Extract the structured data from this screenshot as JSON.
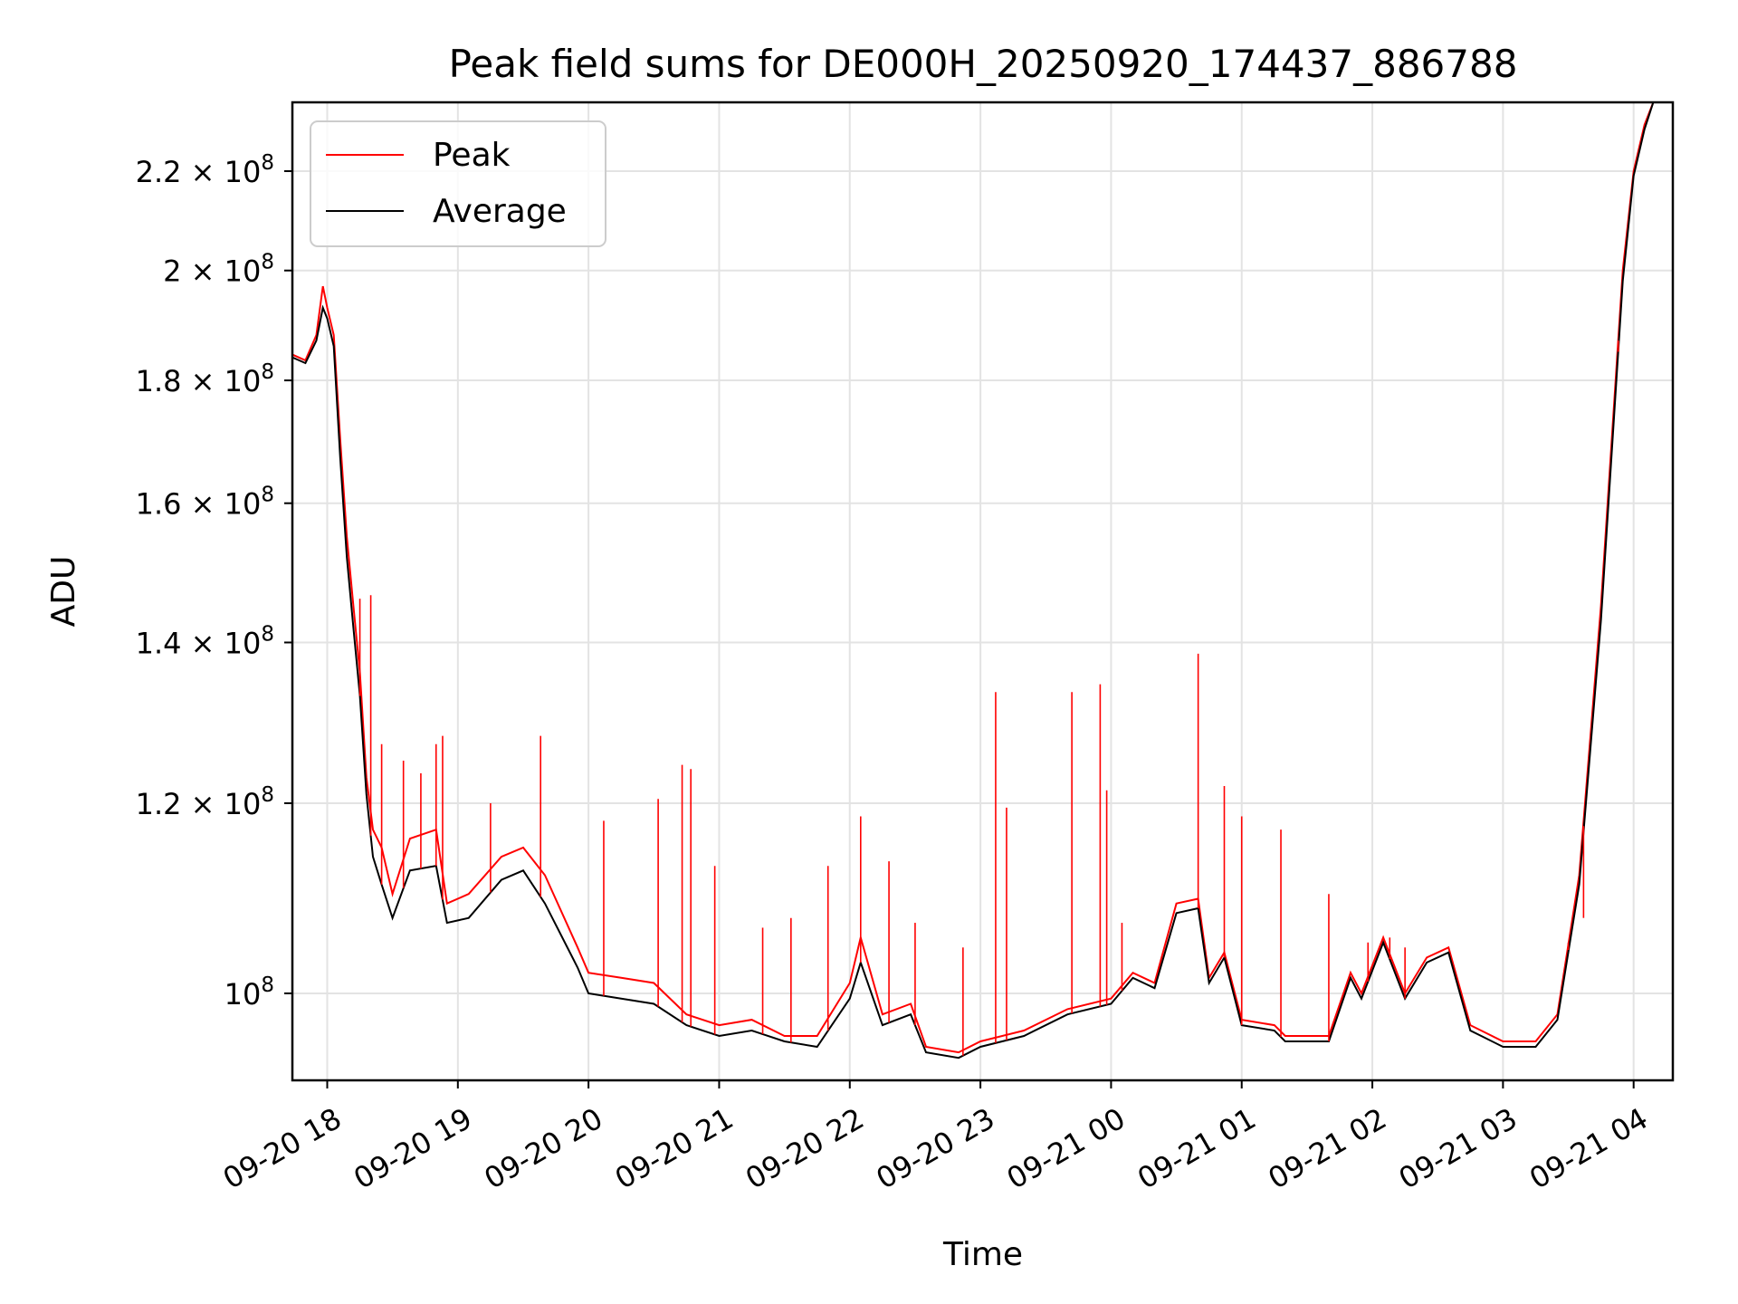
{
  "chart_data": {
    "type": "line",
    "title": "Peak field sums for DE000H_20250920_174437_886788",
    "xlabel": "Time",
    "ylabel": "ADU",
    "y_scale": "log",
    "grid": true,
    "legend_position": "upper-left",
    "x_range": [
      "2025-09-20 17:44",
      "2025-09-21 04:18"
    ],
    "ylim": [
      92000000,
      235000000
    ],
    "x_ticks": [
      {
        "t": "2025-09-20 18:00",
        "label": "09-20 18"
      },
      {
        "t": "2025-09-20 19:00",
        "label": "09-20 19"
      },
      {
        "t": "2025-09-20 20:00",
        "label": "09-20 20"
      },
      {
        "t": "2025-09-20 21:00",
        "label": "09-20 21"
      },
      {
        "t": "2025-09-20 22:00",
        "label": "09-20 22"
      },
      {
        "t": "2025-09-20 23:00",
        "label": "09-20 23"
      },
      {
        "t": "2025-09-21 00:00",
        "label": "09-21 00"
      },
      {
        "t": "2025-09-21 01:00",
        "label": "09-21 01"
      },
      {
        "t": "2025-09-21 02:00",
        "label": "09-21 02"
      },
      {
        "t": "2025-09-21 03:00",
        "label": "09-21 03"
      },
      {
        "t": "2025-09-21 04:00",
        "label": "09-21 04"
      }
    ],
    "y_ticks": [
      {
        "value": 100000000,
        "mant": "",
        "exp": "8",
        "base": "10"
      },
      {
        "value": 120000000,
        "mant": "1.2",
        "exp": "8",
        "base": "10"
      },
      {
        "value": 140000000,
        "mant": "1.4",
        "exp": "8",
        "base": "10"
      },
      {
        "value": 160000000,
        "mant": "1.6",
        "exp": "8",
        "base": "10"
      },
      {
        "value": 180000000,
        "mant": "1.8",
        "exp": "8",
        "base": "10"
      },
      {
        "value": 200000000,
        "mant": "2",
        "exp": "8",
        "base": "10"
      },
      {
        "value": 220000000,
        "mant": "2.2",
        "exp": "8",
        "base": "10"
      }
    ],
    "series": [
      {
        "name": "Peak",
        "color": "#ff0000",
        "points": [
          [
            "2025-09-20 17:44",
            184500000
          ],
          [
            "2025-09-20 17:50",
            183500000
          ],
          [
            "2025-09-20 17:55",
            188000000
          ],
          [
            "2025-09-20 17:58",
            197000000
          ],
          [
            "2025-09-20 18:00",
            193000000
          ],
          [
            "2025-09-20 18:03",
            188000000
          ],
          [
            "2025-09-20 18:06",
            170000000
          ],
          [
            "2025-09-20 18:09",
            155000000
          ],
          [
            "2025-09-20 18:12",
            145000000
          ],
          [
            "2025-09-20 18:15",
            136000000
          ],
          [
            "2025-09-20 18:18",
            123000000
          ],
          [
            "2025-09-20 18:21",
            117000000
          ],
          [
            "2025-09-20 18:25",
            115000000
          ],
          [
            "2025-09-20 18:30",
            110000000
          ],
          [
            "2025-09-20 18:38",
            116000000
          ],
          [
            "2025-09-20 18:50",
            117000000
          ],
          [
            "2025-09-20 18:55",
            109000000
          ],
          [
            "2025-09-20 19:05",
            110000000
          ],
          [
            "2025-09-20 19:20",
            114000000
          ],
          [
            "2025-09-20 19:30",
            115000000
          ],
          [
            "2025-09-20 19:40",
            112000000
          ],
          [
            "2025-09-20 19:55",
            104500000
          ],
          [
            "2025-09-20 20:00",
            102000000
          ],
          [
            "2025-09-20 20:15",
            101500000
          ],
          [
            "2025-09-20 20:30",
            101000000
          ],
          [
            "2025-09-20 20:45",
            98000000
          ],
          [
            "2025-09-20 21:00",
            97000000
          ],
          [
            "2025-09-20 21:15",
            97500000
          ],
          [
            "2025-09-20 21:30",
            96000000
          ],
          [
            "2025-09-20 21:45",
            96000000
          ],
          [
            "2025-09-20 22:00",
            101000000
          ],
          [
            "2025-09-20 22:05",
            105500000
          ],
          [
            "2025-09-20 22:15",
            98000000
          ],
          [
            "2025-09-20 22:28",
            99000000
          ],
          [
            "2025-09-20 22:35",
            95000000
          ],
          [
            "2025-09-20 22:50",
            94500000
          ],
          [
            "2025-09-20 23:00",
            95500000
          ],
          [
            "2025-09-20 23:20",
            96500000
          ],
          [
            "2025-09-20 23:40",
            98500000
          ],
          [
            "2025-09-21 00:00",
            99500000
          ],
          [
            "2025-09-21 00:10",
            102000000
          ],
          [
            "2025-09-21 00:20",
            101000000
          ],
          [
            "2025-09-21 00:30",
            109000000
          ],
          [
            "2025-09-21 00:40",
            109500000
          ],
          [
            "2025-09-21 00:45",
            101500000
          ],
          [
            "2025-09-21 00:52",
            104000000
          ],
          [
            "2025-09-21 01:00",
            97500000
          ],
          [
            "2025-09-21 01:15",
            97000000
          ],
          [
            "2025-09-21 01:20",
            96000000
          ],
          [
            "2025-09-21 01:40",
            96000000
          ],
          [
            "2025-09-21 01:50",
            102000000
          ],
          [
            "2025-09-21 01:55",
            100000000
          ],
          [
            "2025-09-21 02:05",
            105500000
          ],
          [
            "2025-09-21 02:15",
            100000000
          ],
          [
            "2025-09-21 02:25",
            103500000
          ],
          [
            "2025-09-21 02:35",
            104500000
          ],
          [
            "2025-09-21 02:45",
            97000000
          ],
          [
            "2025-09-21 03:00",
            95500000
          ],
          [
            "2025-09-21 03:15",
            95500000
          ],
          [
            "2025-09-21 03:25",
            98000000
          ],
          [
            "2025-09-21 03:35",
            112000000
          ],
          [
            "2025-09-21 03:45",
            145000000
          ],
          [
            "2025-09-21 03:55",
            200000000
          ],
          [
            "2025-09-21 04:00",
            220000000
          ],
          [
            "2025-09-21 04:05",
            230000000
          ],
          [
            "2025-09-21 04:09",
            235000000
          ]
        ]
      },
      {
        "name": "Average",
        "color": "#000000",
        "points": [
          [
            "2025-09-20 17:44",
            184000000
          ],
          [
            "2025-09-20 17:50",
            183000000
          ],
          [
            "2025-09-20 17:55",
            187000000
          ],
          [
            "2025-09-20 17:58",
            193000000
          ],
          [
            "2025-09-20 18:00",
            191000000
          ],
          [
            "2025-09-20 18:03",
            186000000
          ],
          [
            "2025-09-20 18:06",
            167000000
          ],
          [
            "2025-09-20 18:09",
            152000000
          ],
          [
            "2025-09-20 18:12",
            142000000
          ],
          [
            "2025-09-20 18:15",
            133000000
          ],
          [
            "2025-09-20 18:18",
            121000000
          ],
          [
            "2025-09-20 18:21",
            114000000
          ],
          [
            "2025-09-20 18:25",
            111000000
          ],
          [
            "2025-09-20 18:30",
            107500000
          ],
          [
            "2025-09-20 18:38",
            112500000
          ],
          [
            "2025-09-20 18:50",
            113000000
          ],
          [
            "2025-09-20 18:55",
            107000000
          ],
          [
            "2025-09-20 19:05",
            107500000
          ],
          [
            "2025-09-20 19:20",
            111500000
          ],
          [
            "2025-09-20 19:30",
            112500000
          ],
          [
            "2025-09-20 19:40",
            109000000
          ],
          [
            "2025-09-20 19:55",
            102500000
          ],
          [
            "2025-09-20 20:00",
            100000000
          ],
          [
            "2025-09-20 20:15",
            99500000
          ],
          [
            "2025-09-20 20:30",
            99000000
          ],
          [
            "2025-09-20 20:45",
            97000000
          ],
          [
            "2025-09-20 21:00",
            96000000
          ],
          [
            "2025-09-20 21:15",
            96500000
          ],
          [
            "2025-09-20 21:30",
            95500000
          ],
          [
            "2025-09-20 21:45",
            95000000
          ],
          [
            "2025-09-20 22:00",
            99500000
          ],
          [
            "2025-09-20 22:05",
            103000000
          ],
          [
            "2025-09-20 22:15",
            97000000
          ],
          [
            "2025-09-20 22:28",
            98000000
          ],
          [
            "2025-09-20 22:35",
            94500000
          ],
          [
            "2025-09-20 22:50",
            94000000
          ],
          [
            "2025-09-20 23:00",
            95000000
          ],
          [
            "2025-09-20 23:20",
            96000000
          ],
          [
            "2025-09-20 23:40",
            98000000
          ],
          [
            "2025-09-21 00:00",
            99000000
          ],
          [
            "2025-09-21 00:10",
            101500000
          ],
          [
            "2025-09-21 00:20",
            100500000
          ],
          [
            "2025-09-21 00:30",
            108000000
          ],
          [
            "2025-09-21 00:40",
            108500000
          ],
          [
            "2025-09-21 00:45",
            101000000
          ],
          [
            "2025-09-21 00:52",
            103500000
          ],
          [
            "2025-09-21 01:00",
            97000000
          ],
          [
            "2025-09-21 01:15",
            96500000
          ],
          [
            "2025-09-21 01:20",
            95500000
          ],
          [
            "2025-09-21 01:40",
            95500000
          ],
          [
            "2025-09-21 01:50",
            101500000
          ],
          [
            "2025-09-21 01:55",
            99500000
          ],
          [
            "2025-09-21 02:05",
            105000000
          ],
          [
            "2025-09-21 02:15",
            99500000
          ],
          [
            "2025-09-21 02:25",
            103000000
          ],
          [
            "2025-09-21 02:35",
            104000000
          ],
          [
            "2025-09-21 02:45",
            96500000
          ],
          [
            "2025-09-21 03:00",
            95000000
          ],
          [
            "2025-09-21 03:15",
            95000000
          ],
          [
            "2025-09-21 03:25",
            97500000
          ],
          [
            "2025-09-21 03:35",
            111000000
          ],
          [
            "2025-09-21 03:45",
            143000000
          ],
          [
            "2025-09-21 03:55",
            198000000
          ],
          [
            "2025-09-21 04:00",
            219000000
          ],
          [
            "2025-09-21 04:05",
            229000000
          ],
          [
            "2025-09-21 04:09",
            235000000
          ]
        ]
      }
    ],
    "peak_spikes": [
      [
        "2025-09-20 18:15",
        146000000
      ],
      [
        "2025-09-20 18:20",
        146500000
      ],
      [
        "2025-09-20 18:25",
        127000000
      ],
      [
        "2025-09-20 18:35",
        125000000
      ],
      [
        "2025-09-20 18:43",
        123500000
      ],
      [
        "2025-09-20 18:50",
        127000000
      ],
      [
        "2025-09-20 18:53",
        128000000
      ],
      [
        "2025-09-20 19:15",
        120000000
      ],
      [
        "2025-09-20 19:38",
        128000000
      ],
      [
        "2025-09-20 20:07",
        118000000
      ],
      [
        "2025-09-20 20:32",
        120500000
      ],
      [
        "2025-09-20 20:43",
        124500000
      ],
      [
        "2025-09-20 20:47",
        124000000
      ],
      [
        "2025-09-20 20:58",
        113000000
      ],
      [
        "2025-09-20 21:20",
        106500000
      ],
      [
        "2025-09-20 21:33",
        107500000
      ],
      [
        "2025-09-20 21:50",
        113000000
      ],
      [
        "2025-09-20 22:05",
        118500000
      ],
      [
        "2025-09-20 22:18",
        113500000
      ],
      [
        "2025-09-20 22:30",
        107000000
      ],
      [
        "2025-09-20 22:52",
        104500000
      ],
      [
        "2025-09-20 23:07",
        133500000
      ],
      [
        "2025-09-20 23:12",
        119500000
      ],
      [
        "2025-09-20 23:42",
        133500000
      ],
      [
        "2025-09-20 23:55",
        134500000
      ],
      [
        "2025-09-20 23:58",
        121500000
      ],
      [
        "2025-09-21 00:05",
        107000000
      ],
      [
        "2025-09-21 00:40",
        138500000
      ],
      [
        "2025-09-21 00:52",
        122000000
      ],
      [
        "2025-09-21 01:00",
        118500000
      ],
      [
        "2025-09-21 01:18",
        117000000
      ],
      [
        "2025-09-21 01:40",
        110000000
      ],
      [
        "2025-09-21 01:58",
        105000000
      ],
      [
        "2025-09-21 02:08",
        105500000
      ],
      [
        "2025-09-21 02:15",
        104500000
      ],
      [
        "2025-09-21 03:30",
        105000000
      ],
      [
        "2025-09-21 03:37",
        107500000
      ],
      [
        "2025-09-21 03:53",
        185000000
      ]
    ]
  }
}
